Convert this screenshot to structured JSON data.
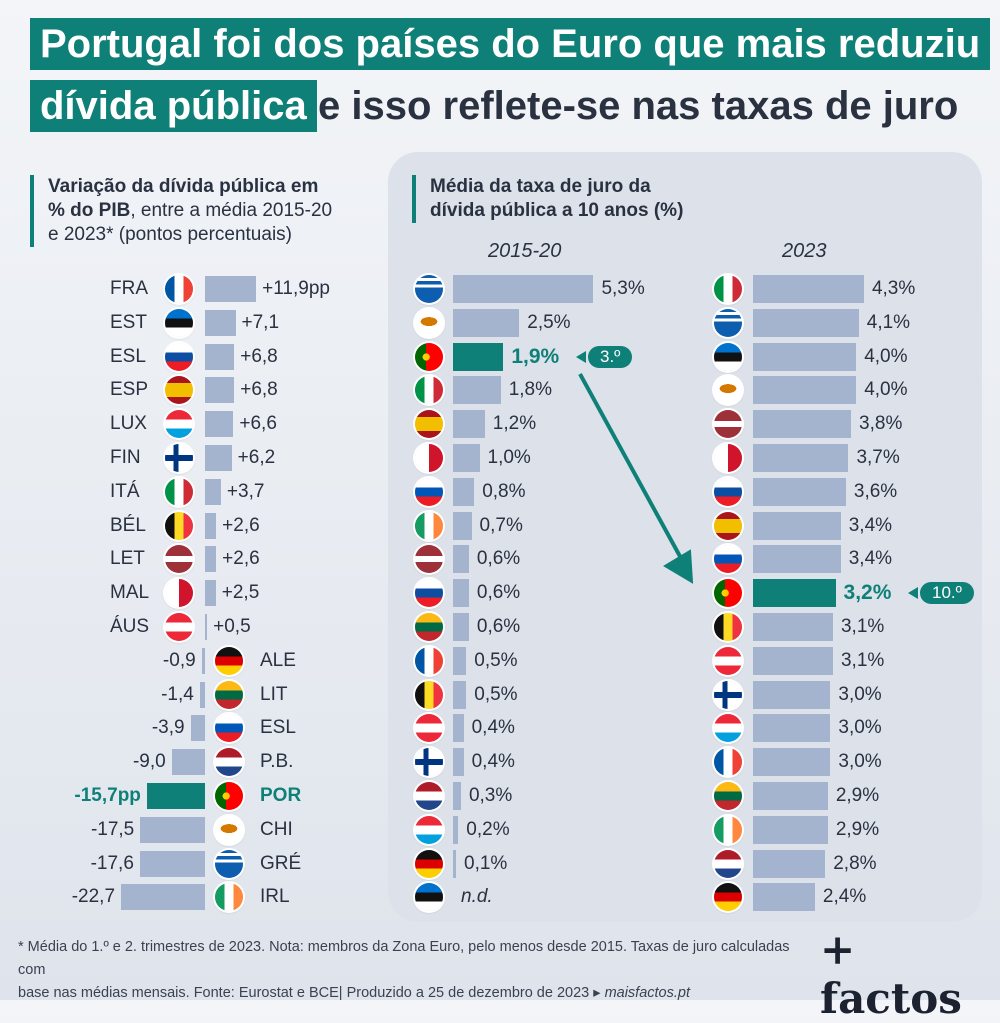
{
  "header": {
    "title_line1": "Portugal foi dos países do Euro que mais reduziu",
    "title_line2_highlight": "dívida pública",
    "title_line2_rest": "e isso reflete-se nas taxas de juro"
  },
  "left_subtitle": {
    "bold1": "Variação da dívida pública em",
    "bold2": "% do PIB",
    "rest1": ", entre a média 2015-20",
    "rest2": "e 2023* (pontos percentuais)"
  },
  "right_subtitle": {
    "line1": "Média da taxa de juro da",
    "line2": "dívida pública a 10 anos (%)"
  },
  "footer": {
    "line1": "* Média do 1.º e 2. trimestres de 2023. Nota: membros da Zona Euro, pelo menos desde 2015. Taxas de juro calculadas com",
    "line2": "base nas médias mensais. Fonte: Eurostat e BCE|  Produzido a 25 de dezembro de 2023 ▸",
    "site": "maisfactos.pt"
  },
  "logo": "+ factos",
  "colors": {
    "accent": "#0f8078",
    "bar": "#a4b4cf",
    "title_text": "#2a3140"
  },
  "chart_data": [
    {
      "type": "bar",
      "orientation": "horizontal",
      "title": "Variação da dívida pública em % do PIB, entre a média 2015-20 e 2023* (pontos percentuais)",
      "highlight": "POR",
      "rows": [
        {
          "code": "FRA",
          "flag": "fr",
          "value": 11.9,
          "label": "+11,9pp"
        },
        {
          "code": "EST",
          "flag": "ee",
          "value": 7.1,
          "label": "+7,1"
        },
        {
          "code": "ESL",
          "flag": "sk",
          "value": 6.8,
          "label": "+6,8"
        },
        {
          "code": "ESP",
          "flag": "es",
          "value": 6.8,
          "label": "+6,8"
        },
        {
          "code": "LUX",
          "flag": "lu",
          "value": 6.6,
          "label": "+6,6"
        },
        {
          "code": "FIN",
          "flag": "fi",
          "value": 6.2,
          "label": "+6,2"
        },
        {
          "code": "ITÁ",
          "flag": "it",
          "value": 3.7,
          "label": "+3,7"
        },
        {
          "code": "BÉL",
          "flag": "be",
          "value": 2.6,
          "label": "+2,6"
        },
        {
          "code": "LET",
          "flag": "lv",
          "value": 2.6,
          "label": "+2,6"
        },
        {
          "code": "MAL",
          "flag": "mt",
          "value": 2.5,
          "label": "+2,5"
        },
        {
          "code": "ÁUS",
          "flag": "at",
          "value": 0.5,
          "label": "+0,5"
        },
        {
          "code": "ALE",
          "flag": "de",
          "value": -0.9,
          "label": "-0,9"
        },
        {
          "code": "LIT",
          "flag": "lt",
          "value": -1.4,
          "label": "-1,4"
        },
        {
          "code": "ESL",
          "flag": "si",
          "value": -3.9,
          "label": "-3,9"
        },
        {
          "code": "P.B.",
          "flag": "nl",
          "value": -9.0,
          "label": "-9,0"
        },
        {
          "code": "POR",
          "flag": "pt",
          "value": -15.7,
          "label": "-15,7pp"
        },
        {
          "code": "CHI",
          "flag": "cy",
          "value": -17.5,
          "label": "-17,5"
        },
        {
          "code": "GRÉ",
          "flag": "gr",
          "value": -17.6,
          "label": "-17,6"
        },
        {
          "code": "IRL",
          "flag": "ie",
          "value": -22.7,
          "label": "-22,7"
        }
      ]
    },
    {
      "type": "bar",
      "orientation": "horizontal",
      "title": "Média da taxa de juro da dívida pública a 10 anos (%)",
      "period": "2015-20",
      "highlight": "pt",
      "rank_label": "3.º",
      "rows": [
        {
          "flag": "gr",
          "value": 5.3,
          "label": "5,3%"
        },
        {
          "flag": "cy",
          "value": 2.5,
          "label": "2,5%"
        },
        {
          "flag": "pt",
          "value": 1.9,
          "label": "1,9%"
        },
        {
          "flag": "it",
          "value": 1.8,
          "label": "1,8%"
        },
        {
          "flag": "es",
          "value": 1.2,
          "label": "1,2%"
        },
        {
          "flag": "mt",
          "value": 1.0,
          "label": "1,0%"
        },
        {
          "flag": "si",
          "value": 0.8,
          "label": "0,8%"
        },
        {
          "flag": "ie",
          "value": 0.7,
          "label": "0,7%"
        },
        {
          "flag": "lv",
          "value": 0.6,
          "label": "0,6%"
        },
        {
          "flag": "sk",
          "value": 0.6,
          "label": "0,6%"
        },
        {
          "flag": "lt",
          "value": 0.6,
          "label": "0,6%"
        },
        {
          "flag": "fr",
          "value": 0.5,
          "label": "0,5%"
        },
        {
          "flag": "be",
          "value": 0.5,
          "label": "0,5%"
        },
        {
          "flag": "at",
          "value": 0.4,
          "label": "0,4%"
        },
        {
          "flag": "fi",
          "value": 0.4,
          "label": "0,4%"
        },
        {
          "flag": "nl",
          "value": 0.3,
          "label": "0,3%"
        },
        {
          "flag": "lu",
          "value": 0.2,
          "label": "0,2%"
        },
        {
          "flag": "de",
          "value": 0.1,
          "label": "0,1%"
        },
        {
          "flag": "ee",
          "value": null,
          "label": "n.d."
        }
      ]
    },
    {
      "type": "bar",
      "orientation": "horizontal",
      "title": "Média da taxa de juro da dívida pública a 10 anos (%)",
      "period": "2023",
      "highlight": "pt",
      "rank_label": "10.º",
      "rows": [
        {
          "flag": "it",
          "value": 4.3,
          "label": "4,3%"
        },
        {
          "flag": "gr",
          "value": 4.1,
          "label": "4,1%"
        },
        {
          "flag": "ee",
          "value": 4.0,
          "label": "4,0%"
        },
        {
          "flag": "cy",
          "value": 4.0,
          "label": "4,0%"
        },
        {
          "flag": "lv",
          "value": 3.8,
          "label": "3,8%"
        },
        {
          "flag": "mt",
          "value": 3.7,
          "label": "3,7%"
        },
        {
          "flag": "sk",
          "value": 3.6,
          "label": "3,6%"
        },
        {
          "flag": "es",
          "value": 3.4,
          "label": "3,4%"
        },
        {
          "flag": "si",
          "value": 3.4,
          "label": "3,4%"
        },
        {
          "flag": "pt",
          "value": 3.2,
          "label": "3,2%"
        },
        {
          "flag": "be",
          "value": 3.1,
          "label": "3,1%"
        },
        {
          "flag": "at",
          "value": 3.1,
          "label": "3,1%"
        },
        {
          "flag": "fi",
          "value": 3.0,
          "label": "3,0%"
        },
        {
          "flag": "lu",
          "value": 3.0,
          "label": "3,0%"
        },
        {
          "flag": "fr",
          "value": 3.0,
          "label": "3,0%"
        },
        {
          "flag": "lt",
          "value": 2.9,
          "label": "2,9%"
        },
        {
          "flag": "ie",
          "value": 2.9,
          "label": "2,9%"
        },
        {
          "flag": "nl",
          "value": 2.8,
          "label": "2,8%"
        },
        {
          "flag": "de",
          "value": 2.4,
          "label": "2,4%"
        }
      ]
    }
  ]
}
